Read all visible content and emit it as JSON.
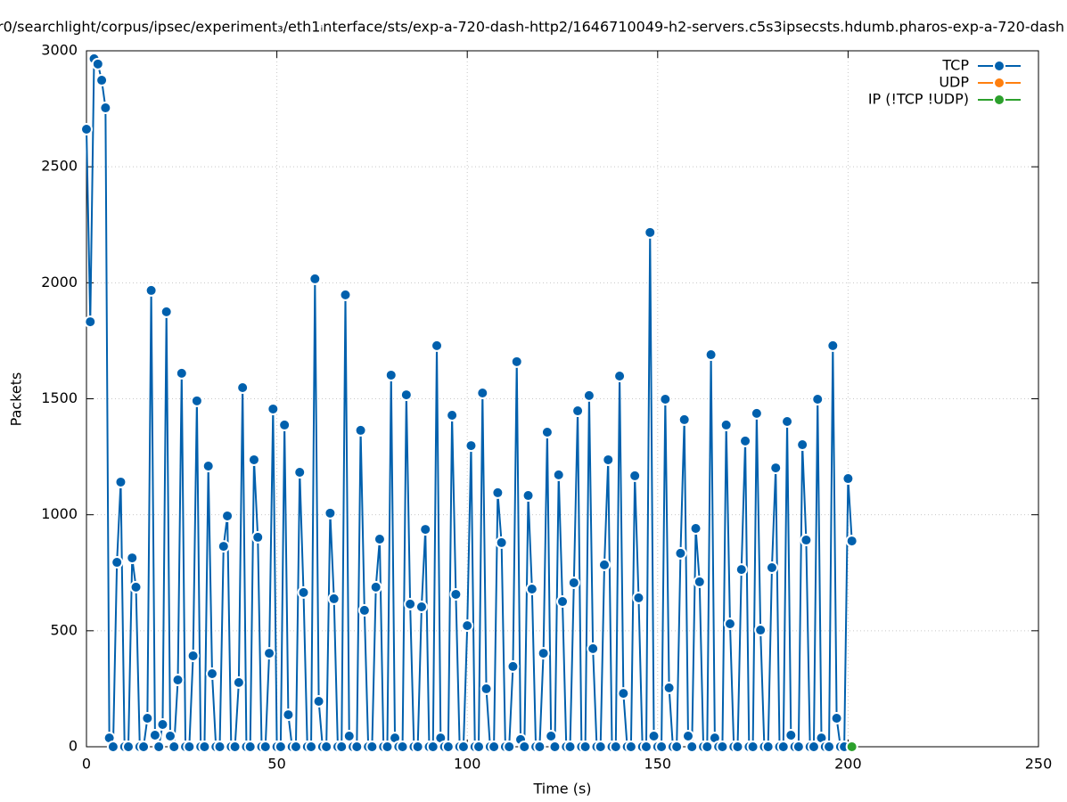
{
  "chart_data": {
    "type": "line",
    "title": "r0/searchlight/corpus/ipsec/experiment₃/eth1ᵢnterface/sts/exp-a-720-dash-http2/1646710049-h2-servers.c5s3ipsecsts.hdumb.pharos-exp-a-720-dash",
    "x_label": "Time (s)",
    "y_label": "Packets",
    "xlim": [
      0,
      250
    ],
    "xticks": [
      0,
      50,
      100,
      150,
      200,
      250
    ],
    "ylim": [
      0,
      3000
    ],
    "yticks": [
      0,
      500,
      1000,
      1500,
      2000,
      2500,
      3000
    ],
    "grid": true,
    "legend": "top-right",
    "series": [
      {
        "name": "TCP",
        "color": "#0060ad",
        "x": [
          0,
          1,
          2,
          3,
          4,
          5,
          6,
          7,
          8,
          9,
          10,
          11,
          12,
          13,
          14,
          15,
          16,
          17,
          18,
          19,
          20,
          21,
          22,
          23,
          24,
          25,
          26,
          27,
          28,
          29,
          30,
          31,
          32,
          33,
          34,
          35,
          36,
          37,
          38,
          39,
          40,
          41,
          42,
          43,
          44,
          45,
          46,
          47,
          48,
          49,
          50,
          51,
          52,
          53,
          54,
          55,
          56,
          57,
          58,
          59,
          60,
          61,
          62,
          63,
          64,
          65,
          66,
          67,
          68,
          69,
          70,
          71,
          72,
          73,
          74,
          75,
          76,
          77,
          78,
          79,
          80,
          81,
          82,
          83,
          84,
          85,
          86,
          87,
          88,
          89,
          90,
          91,
          92,
          93,
          94,
          95,
          96,
          97,
          98,
          99,
          100,
          101,
          102,
          103,
          104,
          105,
          106,
          107,
          108,
          109,
          110,
          111,
          112,
          113,
          114,
          115,
          116,
          117,
          118,
          119,
          120,
          121,
          122,
          123,
          124,
          125,
          126,
          127,
          128,
          129,
          130,
          131,
          132,
          133,
          134,
          135,
          136,
          137,
          138,
          139,
          140,
          141,
          142,
          143,
          144,
          145,
          146,
          147,
          148,
          149,
          150,
          151,
          152,
          153,
          154,
          155,
          156,
          157,
          158,
          159,
          160,
          161,
          162,
          163,
          164,
          165,
          166,
          167,
          168,
          169,
          170,
          171,
          172,
          173,
          174,
          175,
          176,
          177,
          178,
          179,
          180,
          181,
          182,
          183,
          184,
          185,
          186,
          187,
          188,
          189,
          190,
          191,
          192,
          193,
          194,
          195,
          196,
          197,
          198,
          199,
          200,
          201
        ],
        "values": [
          2662,
          1832,
          2966,
          2943,
          2873,
          2754,
          38,
          0,
          795,
          1141,
          0,
          0,
          814,
          688,
          0,
          0,
          123,
          1967,
          50,
          0,
          96,
          1875,
          46,
          0,
          288,
          1610,
          0,
          0,
          392,
          1491,
          0,
          0,
          1210,
          315,
          0,
          0,
          864,
          995,
          0,
          0,
          277,
          1548,
          0,
          0,
          1237,
          903,
          0,
          0,
          403,
          1456,
          0,
          0,
          1387,
          138,
          0,
          0,
          1183,
          665,
          0,
          0,
          2017,
          196,
          0,
          0,
          1007,
          638,
          0,
          0,
          1948,
          46,
          0,
          0,
          1364,
          588,
          0,
          0,
          688,
          895,
          0,
          0,
          1602,
          38,
          0,
          0,
          1517,
          615,
          0,
          0,
          603,
          937,
          0,
          0,
          1729,
          38,
          0,
          0,
          1429,
          657,
          0,
          0,
          522,
          1298,
          0,
          0,
          1525,
          250,
          0,
          0,
          1095,
          880,
          0,
          0,
          346,
          1660,
          31,
          0,
          1083,
          680,
          0,
          0,
          403,
          1356,
          46,
          0,
          1172,
          626,
          0,
          0,
          707,
          1448,
          0,
          0,
          1514,
          423,
          0,
          0,
          784,
          1237,
          0,
          0,
          1598,
          230,
          0,
          0,
          1168,
          642,
          0,
          0,
          2217,
          46,
          0,
          0,
          1498,
          254,
          0,
          0,
          834,
          1410,
          46,
          0,
          941,
          711,
          0,
          0,
          1690,
          38,
          0,
          0,
          1387,
          530,
          0,
          0,
          764,
          1318,
          0,
          0,
          1437,
          503,
          0,
          0,
          772,
          1202,
          0,
          0,
          1402,
          50,
          0,
          0,
          1302,
          891,
          0,
          0,
          1498,
          38,
          0,
          0,
          1729,
          123,
          0,
          0,
          1156,
          887
        ]
      },
      {
        "name": "UDP",
        "color": "#ff7f0e",
        "x": [],
        "values": []
      },
      {
        "name": "IP (!TCP  !UDP)",
        "color": "#2ca02c",
        "x": [
          201
        ],
        "values": [
          0
        ]
      }
    ]
  }
}
